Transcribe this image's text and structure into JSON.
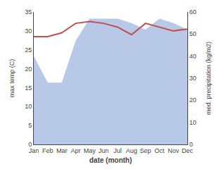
{
  "chart_data": {
    "type": "line",
    "categories": [
      "Jan",
      "Feb",
      "Mar",
      "Apr",
      "May",
      "Jun",
      "Jul",
      "Aug",
      "Sep",
      "Oct",
      "Nov",
      "Dec"
    ],
    "series": [
      {
        "type": "area",
        "axis": "y2",
        "color": "#b8c9e8",
        "values": [
          40,
          28,
          28,
          47,
          57,
          57,
          57,
          55,
          52,
          57,
          55,
          52
        ]
      },
      {
        "type": "line",
        "color": "#c0504d",
        "values": [
          28.5,
          28.5,
          29.5,
          32.0,
          32.5,
          32.0,
          31.0,
          29.0,
          32.0,
          31.0,
          30.0,
          30.5
        ]
      }
    ],
    "xlabel": "date (month)",
    "ylabel": "max temp (C)",
    "y2label": "med. precipitation (kg/m2)",
    "ylim": [
      0,
      35
    ],
    "yticks": [
      0,
      5,
      10,
      15,
      20,
      25,
      30,
      35
    ],
    "y2lim": [
      0,
      60
    ],
    "y2ticks": [
      0,
      10,
      20,
      30,
      40,
      50,
      60
    ],
    "grid": false
  }
}
